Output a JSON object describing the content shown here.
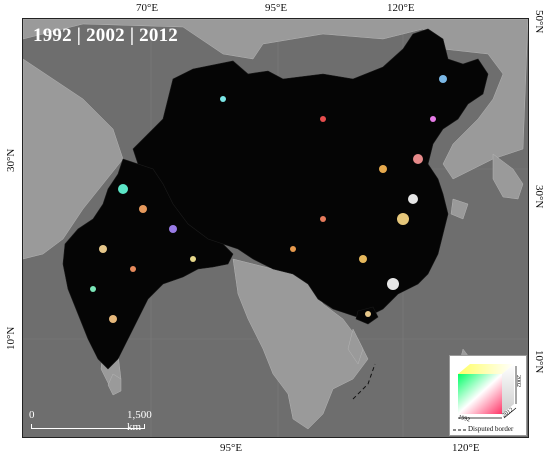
{
  "title": "1992 | 2002 | 2012",
  "top_ticks": [
    "70°E",
    "95°E",
    "120°E"
  ],
  "bottom_ticks": [
    "95°E",
    "120°E"
  ],
  "left_ticks": [
    "30°N",
    "10°N"
  ],
  "right_ticks": [
    "50°N",
    "30°N",
    "10°N"
  ],
  "scalebar": {
    "start": "0",
    "end": "1,500 km"
  },
  "legend": {
    "axis_1992": "1992",
    "axis_2002": "2002",
    "axis_2012": "2012",
    "disputed_border_label": "Disputed border"
  },
  "colors": {
    "sea": "#6e6e6e",
    "land_other": "#9a9a9a",
    "study_area": "#050505",
    "city_lights": "#ffcc66"
  }
}
